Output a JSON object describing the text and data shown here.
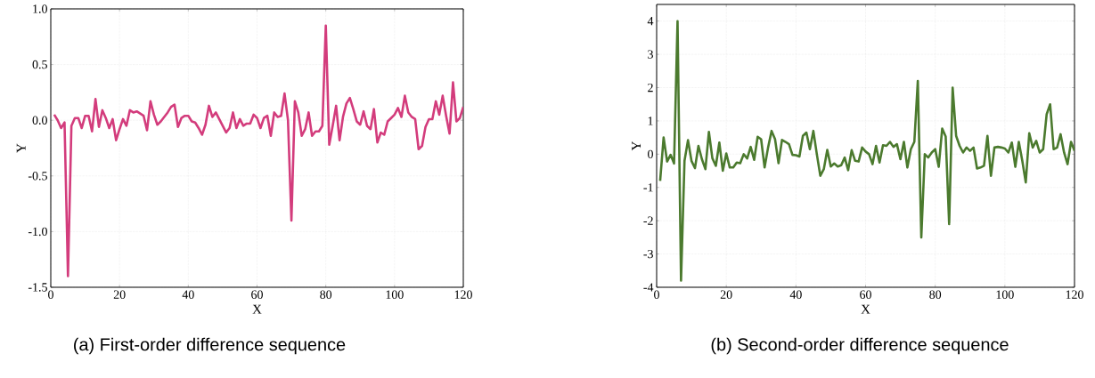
{
  "chart_data": [
    {
      "type": "line",
      "title": "(a) First-order difference sequence",
      "xlabel": "X",
      "ylabel": "Y",
      "x": [
        1,
        2,
        3,
        4,
        5,
        6,
        7,
        8,
        9,
        10,
        11,
        12,
        13,
        14,
        15,
        16,
        17,
        18,
        19,
        20,
        21,
        22,
        23,
        24,
        25,
        26,
        27,
        28,
        29,
        30,
        31,
        32,
        33,
        34,
        35,
        36,
        37,
        38,
        39,
        40,
        41,
        42,
        43,
        44,
        45,
        46,
        47,
        48,
        49,
        50,
        51,
        52,
        53,
        54,
        55,
        56,
        57,
        58,
        59,
        60,
        61,
        62,
        63,
        64,
        65,
        66,
        67,
        68,
        69,
        70,
        71,
        72,
        73,
        74,
        75,
        76,
        77,
        78,
        79,
        80,
        81,
        82,
        83,
        84,
        85,
        86,
        87,
        88,
        89,
        90,
        91,
        92,
        93,
        94,
        95,
        96,
        97,
        98,
        99,
        100,
        101,
        102,
        103,
        104,
        105,
        106,
        107,
        108,
        109,
        110,
        111,
        112,
        113,
        114,
        115,
        116,
        117,
        118,
        119,
        120
      ],
      "series": [
        {
          "color": "#d33c7c",
          "values": [
            0.05,
            0.0,
            -0.07,
            -0.02,
            -1.4,
            -0.05,
            0.02,
            0.02,
            -0.07,
            0.04,
            0.04,
            -0.1,
            0.19,
            -0.06,
            0.09,
            0.02,
            -0.07,
            0.01,
            -0.18,
            -0.08,
            0.01,
            -0.05,
            0.09,
            0.07,
            0.08,
            0.06,
            0.04,
            -0.09,
            0.17,
            0.05,
            -0.04,
            -0.01,
            0.03,
            0.07,
            0.12,
            0.14,
            -0.06,
            0.02,
            0.04,
            0.04,
            -0.01,
            -0.02,
            -0.07,
            -0.13,
            -0.04,
            0.13,
            0.03,
            0.07,
            0.01,
            -0.05,
            -0.11,
            -0.07,
            0.07,
            -0.07,
            0.01,
            -0.05,
            -0.03,
            -0.03,
            0.05,
            0.02,
            -0.07,
            0.02,
            0.04,
            -0.14,
            0.07,
            0.03,
            0.04,
            0.24,
            0.0,
            -0.9,
            0.17,
            0.07,
            -0.14,
            -0.08,
            0.07,
            -0.14,
            -0.1,
            -0.1,
            -0.05,
            0.85,
            -0.22,
            -0.05,
            0.13,
            -0.18,
            0.03,
            0.15,
            0.2,
            0.1,
            -0.01,
            -0.04,
            0.08,
            -0.05,
            -0.08,
            0.1,
            -0.2,
            -0.11,
            -0.13,
            -0.01,
            0.02,
            0.05,
            0.11,
            0.03,
            0.22,
            0.07,
            0.03,
            0.01,
            -0.26,
            -0.23,
            -0.06,
            0.01,
            0.01,
            0.17,
            0.05,
            0.22,
            0.04,
            -0.12,
            0.34,
            -0.01,
            0.02,
            0.12
          ]
        }
      ],
      "xlim": [
        0,
        120
      ],
      "ylim": [
        -1.5,
        1.0
      ],
      "xticks": [
        0,
        20,
        40,
        60,
        80,
        100,
        120
      ],
      "yticks": [
        {
          "value": -1.5,
          "label": "-1.5"
        },
        {
          "value": -1.0,
          "label": "-1.0"
        },
        {
          "value": -0.5,
          "label": "-0.5"
        },
        {
          "value": 0,
          "label": "0.0"
        },
        {
          "value": 0.5,
          "label": "0.5"
        },
        {
          "value": 1.0,
          "label": "1.0"
        }
      ],
      "grid": true,
      "marker": "none",
      "line_style": "solid"
    },
    {
      "type": "line",
      "title": "(b) Second-order difference sequence",
      "xlabel": "X",
      "ylabel": "Y",
      "x": [
        1,
        2,
        3,
        4,
        5,
        6,
        7,
        8,
        9,
        10,
        11,
        12,
        13,
        14,
        15,
        16,
        17,
        18,
        19,
        20,
        21,
        22,
        23,
        24,
        25,
        26,
        27,
        28,
        29,
        30,
        31,
        32,
        33,
        34,
        35,
        36,
        37,
        38,
        39,
        40,
        41,
        42,
        43,
        44,
        45,
        46,
        47,
        48,
        49,
        50,
        51,
        52,
        53,
        54,
        55,
        56,
        57,
        58,
        59,
        60,
        61,
        62,
        63,
        64,
        65,
        66,
        67,
        68,
        69,
        70,
        71,
        72,
        73,
        74,
        75,
        76,
        77,
        78,
        79,
        80,
        81,
        82,
        83,
        84,
        85,
        86,
        87,
        88,
        89,
        90,
        91,
        92,
        93,
        94,
        95,
        96,
        97,
        98,
        99,
        100,
        101,
        102,
        103,
        104,
        105,
        106,
        107,
        108,
        109,
        110,
        111,
        112,
        113,
        114,
        115,
        116,
        117,
        118,
        119,
        120
      ],
      "series": [
        {
          "color": "#4b7a2e",
          "values": [
            -0.8,
            0.5,
            -0.22,
            -0.02,
            -0.28,
            4.0,
            -3.8,
            -0.2,
            0.42,
            -0.2,
            -0.42,
            0.25,
            -0.15,
            -0.45,
            0.67,
            -0.12,
            -0.35,
            0.35,
            -0.5,
            0.02,
            -0.4,
            -0.4,
            -0.25,
            -0.27,
            0.0,
            -0.13,
            0.22,
            -0.17,
            0.52,
            0.45,
            -0.4,
            0.2,
            0.7,
            0.45,
            -0.27,
            0.43,
            0.37,
            0.3,
            -0.02,
            -0.03,
            -0.07,
            0.55,
            0.65,
            0.15,
            0.7,
            0.0,
            -0.65,
            -0.45,
            0.13,
            -0.37,
            -0.28,
            -0.37,
            -0.33,
            -0.1,
            -0.48,
            0.12,
            -0.2,
            -0.22,
            0.2,
            0.08,
            0.0,
            -0.3,
            0.25,
            -0.25,
            0.27,
            0.25,
            0.37,
            0.22,
            0.3,
            -0.15,
            0.37,
            -0.4,
            0.15,
            0.37,
            2.2,
            -2.5,
            0.0,
            -0.1,
            0.05,
            0.15,
            -0.38,
            0.77,
            0.53,
            -2.1,
            2.0,
            0.55,
            0.25,
            0.05,
            0.2,
            0.1,
            0.2,
            -0.43,
            -0.4,
            -0.35,
            0.55,
            -0.65,
            0.2,
            0.22,
            0.2,
            0.17,
            0.05,
            0.35,
            -0.38,
            0.37,
            -0.2,
            -0.85,
            0.63,
            0.2,
            0.4,
            0.05,
            0.15,
            1.2,
            1.5,
            0.15,
            0.2,
            0.6,
            0.05,
            -0.3,
            0.37,
            0.1
          ]
        }
      ],
      "xlim": [
        0,
        120
      ],
      "ylim": [
        -4,
        4.5
      ],
      "xticks": [
        0,
        20,
        40,
        60,
        80,
        100,
        120
      ],
      "yticks": [
        -4,
        -3,
        -2,
        -1,
        0,
        1,
        2,
        3,
        4
      ],
      "grid": true,
      "marker": "none",
      "line_style": "solid"
    }
  ]
}
